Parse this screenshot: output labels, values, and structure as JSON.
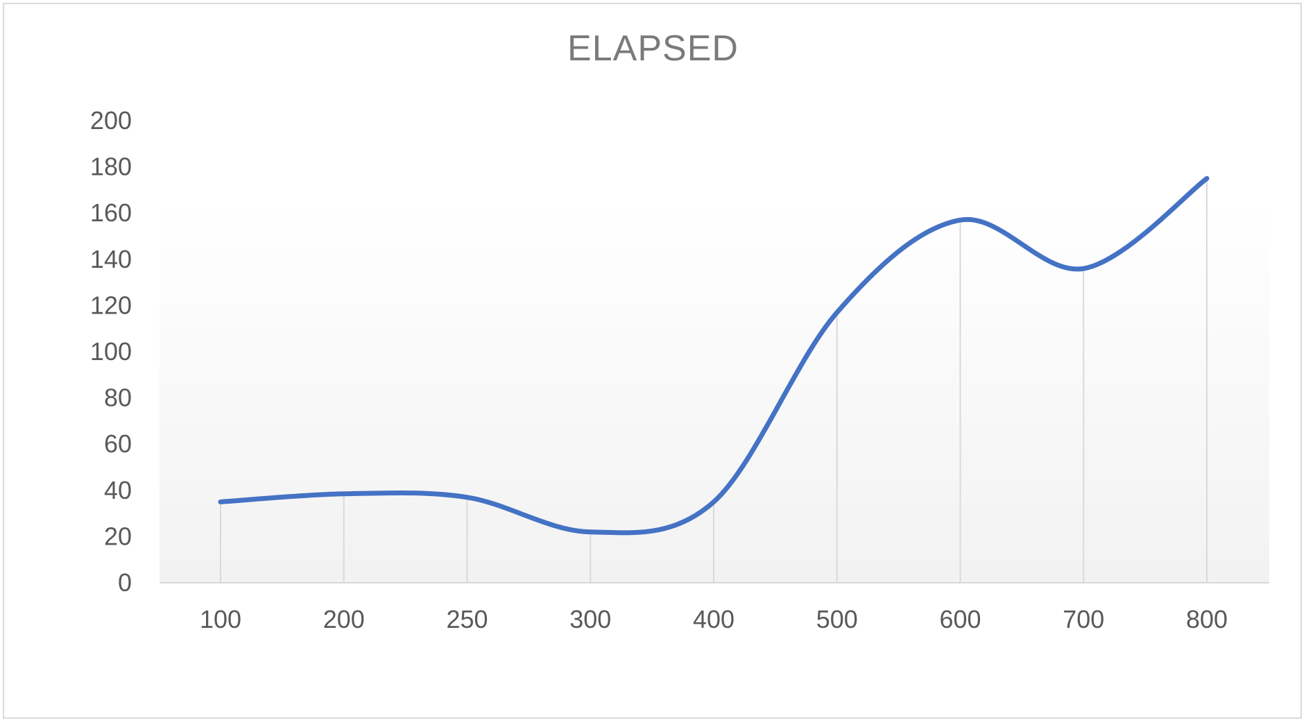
{
  "chart_data": {
    "type": "line",
    "title": "ELAPSED",
    "xlabel": "",
    "ylabel": "",
    "categories": [
      "100",
      "200",
      "250",
      "300",
      "400",
      "500",
      "600",
      "700",
      "800"
    ],
    "series": [
      {
        "values": [
          35,
          38.5,
          37,
          22,
          35,
          117,
          157,
          136,
          175
        ],
        "color": "#4472c4",
        "smooth": true
      }
    ],
    "ylim": [
      0,
      200
    ],
    "yticks": [
      "0",
      "20",
      "40",
      "60",
      "80",
      "100",
      "120",
      "140",
      "160",
      "180",
      "200"
    ],
    "grid": "vertical drop lines",
    "legend": "none",
    "plot_background": "gradient white to light gray"
  }
}
